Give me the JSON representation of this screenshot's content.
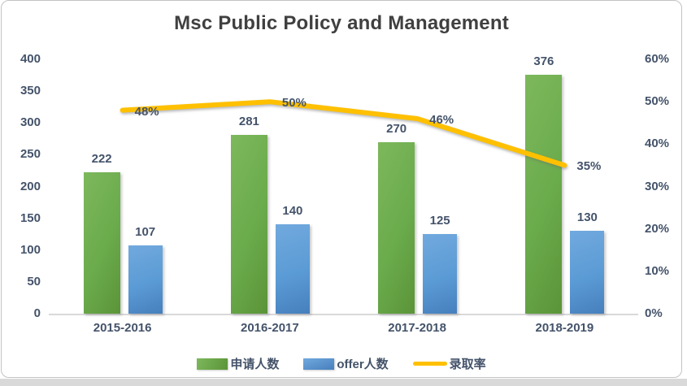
{
  "chart_data": {
    "type": "bar",
    "subtype": "combo-bar-line",
    "title": "Msc Public Policy and Management",
    "categories": [
      "2015-2016",
      "2016-2017",
      "2017-2018",
      "2018-2019"
    ],
    "series": [
      {
        "name": "申请人数",
        "type": "bar",
        "axis": "left",
        "color": "#6aab4c",
        "values": [
          222,
          281,
          270,
          376
        ],
        "labels": [
          "222",
          "281",
          "270",
          "376"
        ]
      },
      {
        "name": "offer人数",
        "type": "bar",
        "axis": "left",
        "color": "#5b9bd5",
        "values": [
          107,
          140,
          125,
          130
        ],
        "labels": [
          "107",
          "140",
          "125",
          "130"
        ]
      },
      {
        "name": "录取率",
        "type": "line",
        "axis": "right",
        "color": "#ffc000",
        "values": [
          48,
          50,
          46,
          35
        ],
        "labels": [
          "48%",
          "50%",
          "46%",
          "35%"
        ]
      }
    ],
    "left_axis": {
      "min": 0,
      "max": 400,
      "step": 50,
      "ticks": [
        "0",
        "50",
        "100",
        "150",
        "200",
        "250",
        "300",
        "350",
        "400"
      ]
    },
    "right_axis": {
      "min": 0,
      "max": 60,
      "step": 10,
      "ticks": [
        "0%",
        "10%",
        "20%",
        "30%",
        "40%",
        "50%",
        "60%"
      ]
    },
    "grid": false,
    "legend_position": "bottom",
    "colors": {
      "bar1": "#6aab4c",
      "bar2": "#5b9bd5",
      "line": "#ffc000",
      "title_text": "#404040",
      "label_text": "#44536a",
      "baseline": "#d9d9d9"
    }
  }
}
